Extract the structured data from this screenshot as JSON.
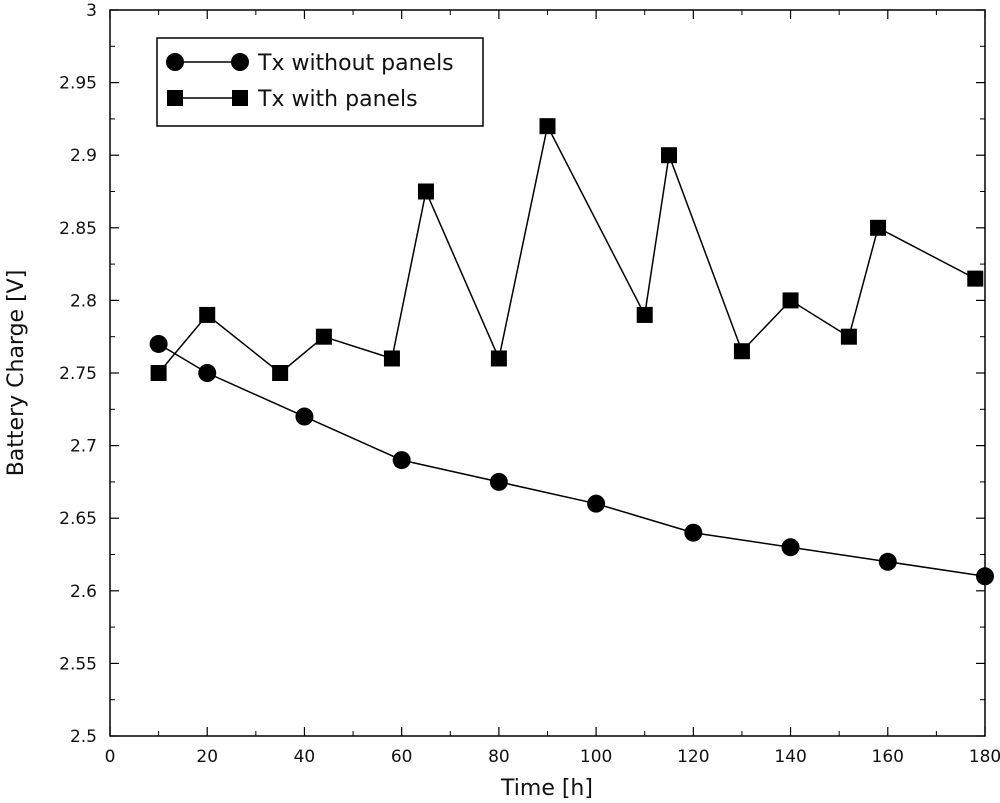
{
  "chart_data": {
    "type": "line",
    "title": "",
    "xlabel": "Time [h]",
    "ylabel": "Battery Charge [V]",
    "xlim": [
      0,
      180
    ],
    "ylim": [
      2.5,
      3.0
    ],
    "xticks": [
      0,
      20,
      40,
      60,
      80,
      100,
      120,
      140,
      160,
      180
    ],
    "xtick_labels": [
      "0",
      "20",
      "40",
      "60",
      "80",
      "100",
      "120",
      "140",
      "160",
      "180"
    ],
    "yticks": [
      2.5,
      2.55,
      2.6,
      2.65,
      2.7,
      2.75,
      2.8,
      2.85,
      2.9,
      2.95,
      3.0
    ],
    "ytick_labels": [
      "2.5",
      "2.55",
      "2.6",
      "2.65",
      "2.7",
      "2.75",
      "2.8",
      "2.85",
      "2.9",
      "2.95",
      "3"
    ],
    "grid": false,
    "legend_position": "top-left",
    "series": [
      {
        "name": "Tx without panels",
        "marker": "circle",
        "color": "#000000",
        "x": [
          10,
          20,
          40,
          60,
          80,
          100,
          120,
          140,
          160,
          180
        ],
        "y": [
          2.77,
          2.75,
          2.72,
          2.69,
          2.675,
          2.66,
          2.64,
          2.63,
          2.62,
          2.61
        ]
      },
      {
        "name": "Tx with panels",
        "marker": "square",
        "color": "#000000",
        "x": [
          10,
          20,
          35,
          44,
          58,
          65,
          80,
          90,
          110,
          115,
          130,
          140,
          152,
          158,
          178
        ],
        "y": [
          2.75,
          2.79,
          2.75,
          2.775,
          2.76,
          2.875,
          2.76,
          2.92,
          2.79,
          2.9,
          2.765,
          2.8,
          2.775,
          2.85,
          2.815
        ]
      }
    ]
  }
}
